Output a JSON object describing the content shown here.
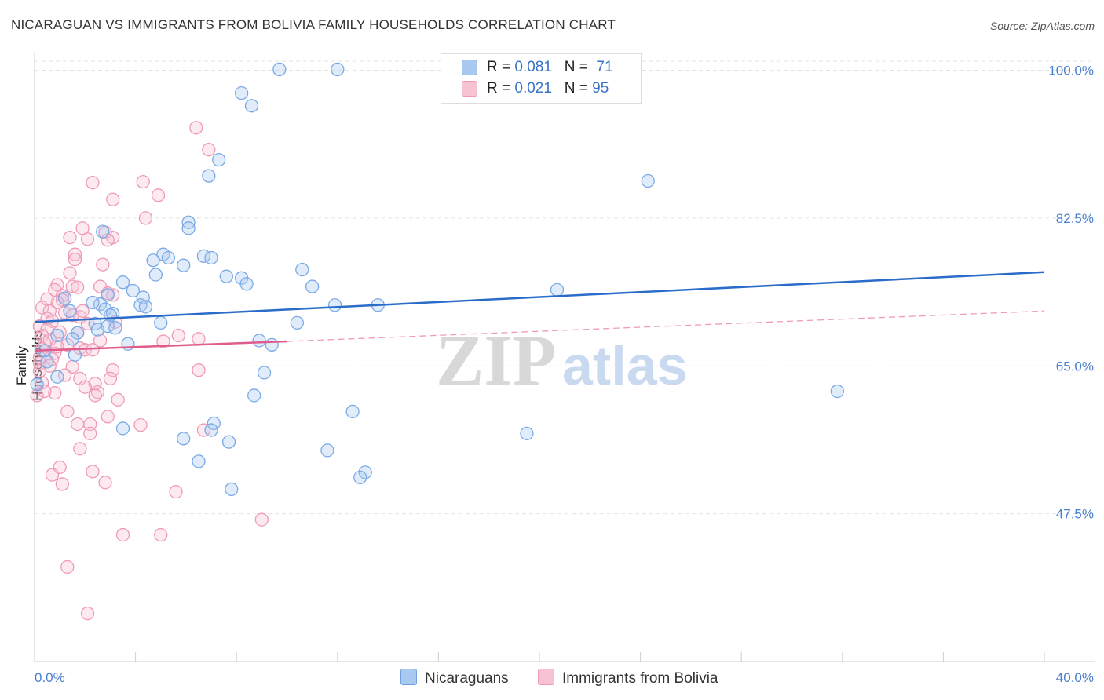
{
  "title": "NICARAGUAN VS IMMIGRANTS FROM BOLIVIA FAMILY HOUSEHOLDS CORRELATION CHART",
  "source": "Source: ZipAtlas.com",
  "watermark": {
    "zip": "ZIP",
    "atlas": "atlas"
  },
  "legend": {
    "rows": [
      {
        "r_label": "R = ",
        "r_value": "0.081",
        "n_label": "N = ",
        "n_value": " 71"
      },
      {
        "r_label": "R = ",
        "r_value": "0.021",
        "n_label": "N = ",
        "n_value": "95"
      }
    ]
  },
  "bottom_legend": {
    "series1": "Nicaraguans",
    "series2": "Immigrants from Bolivia"
  },
  "colors": {
    "blue": "#7aaae6",
    "blue_fill": "#a9c9f0",
    "blue_line": "#2a6cc9",
    "pink": "#f09ab6",
    "pink_fill": "#f7c3d3",
    "pink_line": "#e05c8c",
    "tick": "#4a7fcf"
  },
  "chart_data": {
    "type": "scatter",
    "ylabel": "Family Households",
    "xlim": [
      0,
      40
    ],
    "ylim": [
      30,
      102
    ],
    "x_tick_labels": [
      "0.0%",
      "40.0%"
    ],
    "y_ticks": [
      47.5,
      65.0,
      82.5,
      100.0
    ],
    "y_tick_labels": [
      "47.5%",
      "65.0%",
      "82.5%",
      "100.0%"
    ],
    "grid": true,
    "series": [
      {
        "name": "Nicaraguans",
        "trend": {
          "x": [
            0,
            40
          ],
          "y": [
            70.2,
            76.1
          ]
        },
        "points": [
          [
            9.7,
            100.1
          ],
          [
            12.0,
            100.1
          ],
          [
            21.7,
            100.1
          ],
          [
            8.2,
            97.3
          ],
          [
            8.6,
            95.8
          ],
          [
            7.3,
            89.4
          ],
          [
            6.9,
            87.5
          ],
          [
            24.3,
            86.9
          ],
          [
            6.1,
            82.0
          ],
          [
            6.1,
            81.3
          ],
          [
            2.7,
            80.9
          ],
          [
            5.1,
            78.2
          ],
          [
            6.7,
            78.0
          ],
          [
            7.0,
            77.8
          ],
          [
            5.3,
            77.8
          ],
          [
            4.7,
            77.5
          ],
          [
            5.9,
            76.9
          ],
          [
            10.6,
            76.4
          ],
          [
            4.8,
            75.8
          ],
          [
            7.6,
            75.6
          ],
          [
            8.2,
            75.4
          ],
          [
            3.5,
            74.9
          ],
          [
            8.4,
            74.7
          ],
          [
            11.0,
            74.4
          ],
          [
            20.7,
            74.0
          ],
          [
            3.9,
            73.9
          ],
          [
            2.9,
            73.4
          ],
          [
            4.3,
            73.1
          ],
          [
            2.6,
            72.3
          ],
          [
            4.2,
            72.2
          ],
          [
            4.4,
            72.0
          ],
          [
            11.9,
            72.2
          ],
          [
            13.6,
            72.2
          ],
          [
            2.8,
            71.7
          ],
          [
            1.4,
            71.5
          ],
          [
            3.1,
            71.2
          ],
          [
            3.0,
            71.0
          ],
          [
            2.4,
            70.0
          ],
          [
            10.4,
            70.1
          ],
          [
            5.0,
            70.1
          ],
          [
            2.9,
            69.7
          ],
          [
            2.5,
            69.3
          ],
          [
            1.7,
            68.9
          ],
          [
            0.9,
            68.6
          ],
          [
            1.5,
            68.2
          ],
          [
            8.9,
            68.0
          ],
          [
            9.4,
            67.5
          ],
          [
            3.7,
            67.6
          ],
          [
            0.4,
            66.8
          ],
          [
            1.6,
            66.3
          ],
          [
            9.1,
            64.2
          ],
          [
            0.9,
            63.7
          ],
          [
            31.8,
            62.0
          ],
          [
            8.7,
            61.5
          ],
          [
            12.6,
            59.6
          ],
          [
            7.1,
            58.2
          ],
          [
            3.5,
            57.6
          ],
          [
            7.0,
            57.4
          ],
          [
            19.5,
            57.0
          ],
          [
            5.9,
            56.4
          ],
          [
            7.7,
            56.0
          ],
          [
            11.6,
            55.0
          ],
          [
            6.5,
            53.7
          ],
          [
            13.1,
            52.4
          ],
          [
            12.9,
            51.8
          ],
          [
            7.8,
            50.4
          ],
          [
            0.1,
            62.8
          ],
          [
            0.5,
            65.5
          ],
          [
            2.3,
            72.5
          ],
          [
            1.2,
            73.0
          ],
          [
            3.2,
            69.5
          ]
        ]
      },
      {
        "name": "Immigrants from Bolivia",
        "trend": {
          "x": [
            0,
            10
          ],
          "y": [
            66.8,
            67.9
          ],
          "x_ext": [
            10,
            40
          ],
          "y_ext": [
            67.9,
            71.5
          ]
        },
        "points": [
          [
            6.4,
            93.2
          ],
          [
            6.9,
            90.6
          ],
          [
            2.3,
            86.7
          ],
          [
            4.3,
            86.8
          ],
          [
            4.9,
            85.2
          ],
          [
            3.1,
            84.7
          ],
          [
            4.4,
            82.5
          ],
          [
            1.9,
            81.3
          ],
          [
            2.8,
            80.8
          ],
          [
            1.4,
            80.2
          ],
          [
            3.1,
            80.2
          ],
          [
            2.1,
            80.0
          ],
          [
            2.9,
            79.9
          ],
          [
            1.6,
            78.2
          ],
          [
            1.6,
            77.6
          ],
          [
            2.7,
            77.0
          ],
          [
            1.4,
            76.0
          ],
          [
            0.9,
            74.6
          ],
          [
            1.5,
            74.4
          ],
          [
            1.7,
            74.3
          ],
          [
            2.6,
            74.4
          ],
          [
            0.8,
            74.0
          ],
          [
            2.9,
            73.6
          ],
          [
            1.1,
            73.3
          ],
          [
            3.1,
            73.4
          ],
          [
            1.1,
            72.8
          ],
          [
            0.9,
            72.5
          ],
          [
            0.3,
            71.9
          ],
          [
            1.2,
            71.3
          ],
          [
            0.6,
            71.5
          ],
          [
            1.5,
            71.0
          ],
          [
            0.5,
            70.6
          ],
          [
            1.8,
            70.8
          ],
          [
            0.7,
            70.3
          ],
          [
            2.1,
            70.0
          ],
          [
            3.2,
            70.2
          ],
          [
            0.2,
            69.7
          ],
          [
            0.5,
            69.3
          ],
          [
            1.7,
            68.9
          ],
          [
            0.3,
            68.6
          ],
          [
            0.6,
            68.1
          ],
          [
            5.7,
            68.6
          ],
          [
            6.5,
            68.2
          ],
          [
            0.4,
            67.7
          ],
          [
            5.1,
            67.9
          ],
          [
            1.3,
            67.5
          ],
          [
            1.8,
            67.1
          ],
          [
            0.3,
            67.0
          ],
          [
            2.0,
            66.9
          ],
          [
            0.8,
            66.5
          ],
          [
            2.3,
            66.9
          ],
          [
            0.7,
            65.8
          ],
          [
            0.2,
            65.3
          ],
          [
            0.6,
            65.0
          ],
          [
            1.5,
            64.9
          ],
          [
            3.1,
            64.5
          ],
          [
            0.2,
            64.4
          ],
          [
            6.5,
            64.5
          ],
          [
            1.2,
            63.9
          ],
          [
            1.8,
            63.5
          ],
          [
            2.4,
            62.9
          ],
          [
            0.1,
            61.5
          ],
          [
            2.0,
            62.5
          ],
          [
            2.5,
            61.9
          ],
          [
            0.8,
            61.8
          ],
          [
            2.4,
            61.5
          ],
          [
            3.3,
            61.0
          ],
          [
            1.3,
            59.6
          ],
          [
            2.9,
            59.0
          ],
          [
            1.7,
            58.1
          ],
          [
            2.2,
            58.1
          ],
          [
            4.2,
            58.0
          ],
          [
            6.7,
            57.4
          ],
          [
            2.2,
            57.0
          ],
          [
            1.8,
            55.2
          ],
          [
            1.0,
            53.0
          ],
          [
            2.3,
            52.5
          ],
          [
            0.7,
            52.1
          ],
          [
            1.1,
            51.0
          ],
          [
            2.8,
            51.2
          ],
          [
            5.6,
            50.1
          ],
          [
            0.3,
            63.0
          ],
          [
            9.0,
            46.8
          ],
          [
            3.5,
            45.0
          ],
          [
            5.0,
            45.0
          ],
          [
            1.3,
            41.2
          ],
          [
            2.1,
            35.7
          ],
          [
            0.2,
            66.0
          ],
          [
            0.4,
            62.0
          ],
          [
            1.0,
            69.0
          ],
          [
            2.6,
            68.0
          ],
          [
            3.0,
            63.5
          ],
          [
            0.9,
            67.3
          ],
          [
            1.9,
            71.5
          ],
          [
            0.5,
            72.9
          ]
        ]
      }
    ]
  }
}
